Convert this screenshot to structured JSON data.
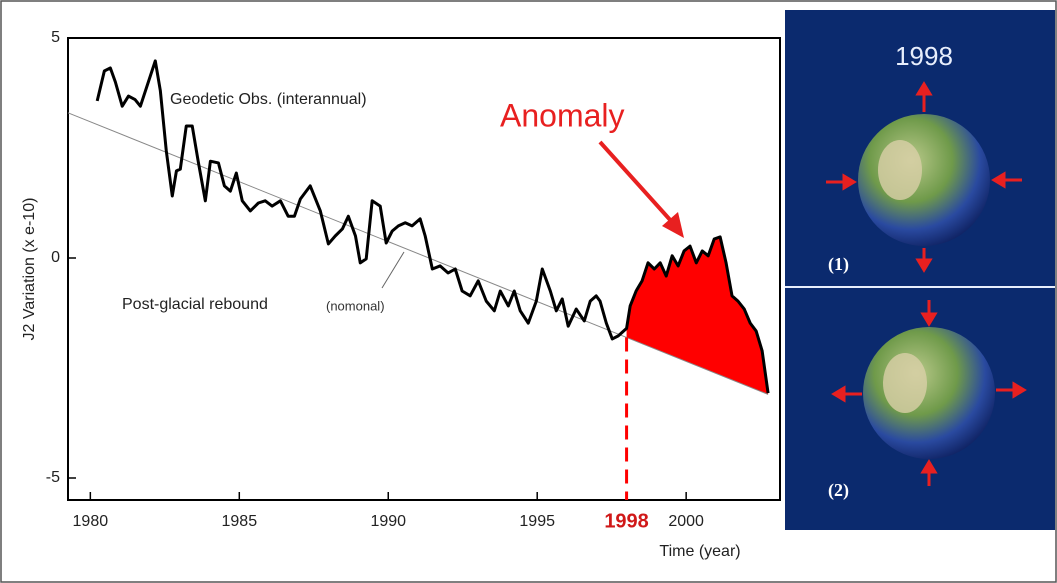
{
  "chart_data": {
    "type": "line",
    "y_label": "J2 Variation (x e-10)",
    "x_label": "Time (year)",
    "xlim": [
      1979.25,
      2003.15
    ],
    "ylim": [
      -5.5,
      5
    ],
    "xticks": [
      1980,
      1985,
      1990,
      1995,
      2000
    ],
    "yticks": [
      -5,
      0,
      5
    ],
    "x": [
      1980.23,
      1980.47,
      1980.67,
      1980.84,
      1981.07,
      1981.28,
      1981.5,
      1981.68,
      1982.18,
      1982.35,
      1982.55,
      1982.75,
      1982.89,
      1983.02,
      1983.22,
      1983.42,
      1983.62,
      1983.86,
      1984.03,
      1984.3,
      1984.5,
      1984.7,
      1984.9,
      1985.1,
      1985.37,
      1985.64,
      1985.87,
      1986.1,
      1986.38,
      1986.64,
      1986.85,
      1987.05,
      1987.38,
      1987.72,
      1987.99,
      1988.22,
      1988.46,
      1988.66,
      1988.9,
      1989.06,
      1989.26,
      1989.46,
      1989.73,
      1989.93,
      1990.13,
      1990.34,
      1990.57,
      1990.8,
      1991.07,
      1991.24,
      1991.48,
      1991.74,
      1992.01,
      1992.25,
      1992.48,
      1992.75,
      1993.02,
      1993.29,
      1993.56,
      1993.76,
      1994.03,
      1994.23,
      1994.43,
      1994.7,
      1994.97,
      1995.17,
      1995.44,
      1995.64,
      1995.84,
      1996.04,
      1996.31,
      1996.58,
      1996.78,
      1996.98,
      1997.11,
      1997.32,
      1997.52,
      1997.72,
      1998.0,
      1998.12,
      1998.32,
      1998.52,
      1998.72,
      1998.93,
      1999.13,
      1999.33,
      1999.53,
      1999.73,
      1999.93,
      2000.13,
      2000.34,
      2000.54,
      2000.74,
      2000.94,
      2001.14,
      2001.34,
      2001.54,
      2001.74,
      2001.95,
      2002.15,
      2002.35,
      2002.55,
      2002.75
    ],
    "series": [
      {
        "name": "Geodetic Obs. (interannual)",
        "color": "#000000",
        "values": [
          3.57,
          4.25,
          4.32,
          4.0,
          3.45,
          3.68,
          3.6,
          3.45,
          4.48,
          3.8,
          2.43,
          1.41,
          1.98,
          2.02,
          3.0,
          3.0,
          2.2,
          1.3,
          2.2,
          2.16,
          1.64,
          1.52,
          1.93,
          1.3,
          1.07,
          1.25,
          1.3,
          1.18,
          1.3,
          0.95,
          0.95,
          1.34,
          1.64,
          1.07,
          0.32,
          0.5,
          0.66,
          0.95,
          0.5,
          -0.11,
          -0.02,
          1.3,
          1.18,
          0.34,
          0.61,
          0.73,
          0.8,
          0.73,
          0.89,
          0.5,
          -0.25,
          -0.18,
          -0.34,
          -0.25,
          -0.75,
          -0.86,
          -0.52,
          -0.98,
          -1.2,
          -0.75,
          -1.09,
          -0.75,
          -1.2,
          -1.48,
          -0.98,
          -0.25,
          -0.75,
          -1.2,
          -0.93,
          -1.55,
          -1.16,
          -1.43,
          -0.98,
          -0.86,
          -0.98,
          -1.48,
          -1.84,
          -1.77,
          -1.6,
          -1.09,
          -0.75,
          -0.52,
          -0.11,
          -0.25,
          -0.11,
          -0.41,
          0.05,
          -0.18,
          0.16,
          0.27,
          -0.11,
          0.16,
          0.05,
          0.43,
          0.48,
          -0.11,
          -0.86,
          -0.98,
          -1.16,
          -1.48,
          -1.66,
          -2.11,
          -3.07
        ]
      }
    ],
    "trend": {
      "name": "Post-glacial rebound",
      "note": "(nomonal)",
      "color": "#888888",
      "x": [
        1979.25,
        2002.75
      ],
      "values": [
        3.3,
        -3.1
      ]
    },
    "highlight_x": 1998,
    "highlight_color": "#ff0000",
    "annotation": "Anomaly"
  },
  "panels": {
    "title": "1998",
    "labels": [
      "(1)",
      "(2)"
    ]
  }
}
